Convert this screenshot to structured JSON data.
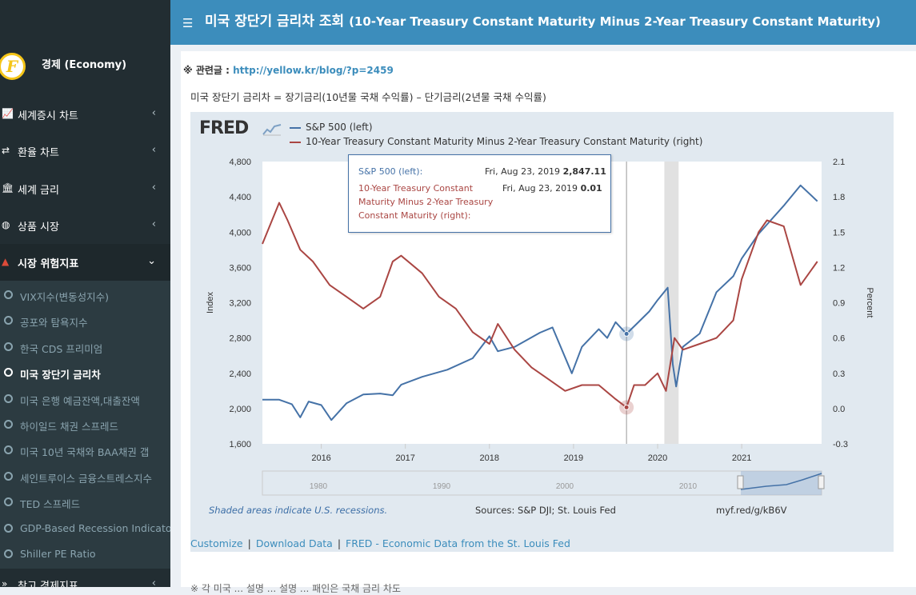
{
  "sidebar": {
    "user_name": "경제 (Economy)",
    "logo_letter": "F",
    "menu": [
      {
        "label": "세계증시 차트",
        "icon": "line-chart-icon",
        "glyph": "📈"
      },
      {
        "label": "환율 차트",
        "icon": "exchange-icon",
        "glyph": "⇄"
      },
      {
        "label": "세계 금리",
        "icon": "bank-icon",
        "glyph": "🏛"
      },
      {
        "label": "상품 시장",
        "icon": "globe-icon",
        "glyph": "◍"
      },
      {
        "label": "시장 위험지표",
        "icon": "warning-icon",
        "glyph": "▲"
      }
    ],
    "submenu": [
      "VIX지수(변동성지수)",
      "공포와 탐욕지수",
      "한국 CDS 프리미엄",
      "미국 장단기 금리차",
      "미국 은행 예금잔액,대출잔액",
      "하이일드 채권 스프레드",
      "미국 10년 국채와 BAA채권 갭",
      "세인트루이스 금융스트레스지수",
      "TED 스프레드",
      "GDP-Based Recession Indicator",
      "Shiller PE Ratio"
    ],
    "bottom_menu": {
      "label": "참고 경제지표",
      "icon": "angle-double-icon",
      "glyph": "»"
    }
  },
  "header": {
    "title": "미국 장단기 금리차 조회",
    "subtitle": "(10-Year Treasury Constant Maturity Minus 2-Year Treasury Constant Maturity)"
  },
  "content": {
    "related_prefix": "※ 관련글 : ",
    "related_link": "http://yellow.kr/blog/?p=2459",
    "description": "미국 장단기 금리차 = 장기금리(10년물 국채 수익률) – 단기금리(2년물 국채 수익률)",
    "bottom_text": "※       각 미국 ... 설명 ... 설명 ... 패인은 국채 금리 차도"
  },
  "fred": {
    "logo": "FRED",
    "legend": [
      {
        "name": "S&P 500 (left)",
        "color": "#4572a7"
      },
      {
        "name": "10-Year Treasury Constant Maturity Minus 2-Year Treasury Constant Maturity (right)",
        "color": "#aa4643"
      }
    ],
    "tooltip": {
      "sp_label": "S&P 500 (left):",
      "sp_date": "Fri, Aug 23, 2019",
      "sp_value": "2,847.11",
      "spread_label_1": "10-Year Treasury Constant",
      "spread_label_2": "Maturity Minus 2-Year Treasury",
      "spread_label_3": "Constant Maturity (right):",
      "spread_date": "Fri, Aug 23, 2019",
      "spread_value": "0.01"
    },
    "recession_note": "Shaded areas indicate U.S. recessions.",
    "sources": "Sources: S&P DJI; St. Louis Fed",
    "short_url": "myf.red/g/kB6V",
    "links": [
      "Customize",
      "Download Data",
      "FRED - Economic Data from the St. Louis Fed"
    ],
    "navigator_labels": [
      "1980",
      "1990",
      "2000",
      "2010"
    ]
  },
  "chart_data": {
    "type": "line",
    "left_axis": {
      "label": "Index",
      "ticks": [
        "4,800",
        "4,400",
        "4,000",
        "3,600",
        "3,200",
        "2,800",
        "2,400",
        "2,000",
        "1,600"
      ],
      "ylim": [
        1600,
        4800
      ]
    },
    "right_axis": {
      "label": "Percent",
      "ticks": [
        "2.1",
        "1.8",
        "1.5",
        "1.2",
        "0.9",
        "0.6",
        "0.3",
        "0.0",
        "-0.3"
      ],
      "ylim": [
        -0.3,
        2.1
      ]
    },
    "x_ticks": [
      "2016",
      "2017",
      "2018",
      "2019",
      "2020",
      "2021"
    ],
    "recession": {
      "start": 2020.08,
      "end": 2020.25
    },
    "series": [
      {
        "name": "S&P 500 (left)",
        "axis": "left",
        "color": "#4572a7",
        "x": [
          2015.3,
          2015.5,
          2015.65,
          2015.75,
          2015.85,
          2016.0,
          2016.12,
          2016.3,
          2016.5,
          2016.7,
          2016.85,
          2016.95,
          2017.2,
          2017.5,
          2017.8,
          2018.0,
          2018.1,
          2018.3,
          2018.6,
          2018.75,
          2018.98,
          2019.1,
          2019.3,
          2019.4,
          2019.5,
          2019.63,
          2019.75,
          2019.9,
          2020.0,
          2020.12,
          2020.18,
          2020.22,
          2020.3,
          2020.5,
          2020.7,
          2020.9,
          2021.0,
          2021.2,
          2021.5,
          2021.7,
          2021.9
        ],
        "y": [
          2100,
          2100,
          2050,
          1900,
          2080,
          2040,
          1870,
          2060,
          2160,
          2170,
          2150,
          2270,
          2360,
          2440,
          2570,
          2820,
          2650,
          2700,
          2860,
          2920,
          2400,
          2700,
          2900,
          2800,
          2980,
          2847,
          2960,
          3100,
          3230,
          3370,
          2500,
          2250,
          2700,
          2850,
          3320,
          3500,
          3700,
          3980,
          4300,
          4530,
          4350
        ]
      },
      {
        "name": "10-Year Treasury Constant Maturity Minus 2-Year Treasury Constant Maturity (right)",
        "axis": "right",
        "color": "#aa4643",
        "x": [
          2015.3,
          2015.5,
          2015.6,
          2015.75,
          2015.9,
          2016.1,
          2016.3,
          2016.5,
          2016.7,
          2016.85,
          2016.95,
          2017.2,
          2017.4,
          2017.6,
          2017.8,
          2018.0,
          2018.1,
          2018.3,
          2018.5,
          2018.7,
          2018.9,
          2019.1,
          2019.3,
          2019.5,
          2019.63,
          2019.72,
          2019.85,
          2020.0,
          2020.1,
          2020.2,
          2020.3,
          2020.5,
          2020.7,
          2020.9,
          2021.0,
          2021.2,
          2021.3,
          2021.5,
          2021.7,
          2021.9
        ],
        "y": [
          1.4,
          1.75,
          1.6,
          1.35,
          1.25,
          1.05,
          0.95,
          0.85,
          0.95,
          1.25,
          1.3,
          1.15,
          0.95,
          0.85,
          0.65,
          0.55,
          0.72,
          0.5,
          0.35,
          0.25,
          0.15,
          0.2,
          0.2,
          0.08,
          0.01,
          0.2,
          0.2,
          0.3,
          0.15,
          0.6,
          0.5,
          0.55,
          0.6,
          0.75,
          1.1,
          1.5,
          1.6,
          1.55,
          1.05,
          1.25
        ]
      }
    ]
  }
}
